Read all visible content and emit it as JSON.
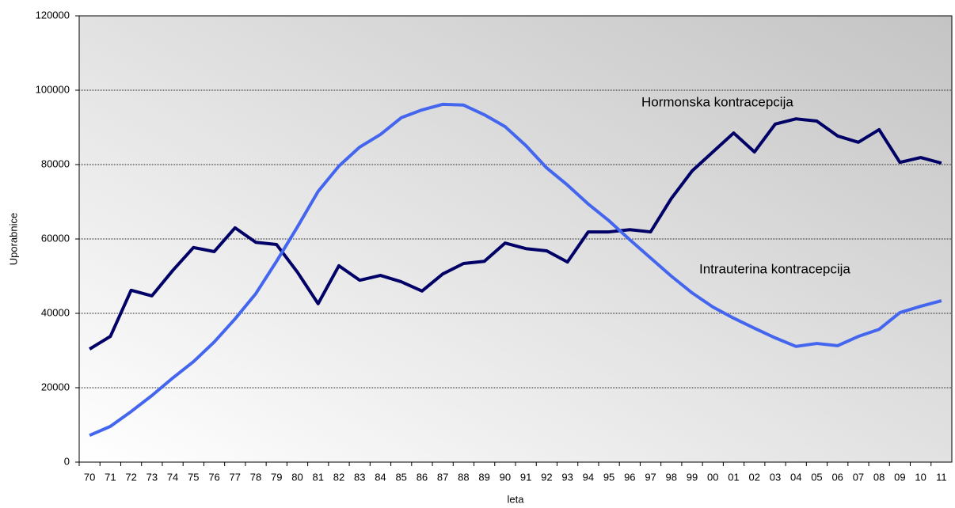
{
  "chart_data": {
    "type": "line",
    "ylabel": "Uporabnice",
    "xlabel": "leta",
    "categories": [
      "70",
      "71",
      "72",
      "73",
      "74",
      "75",
      "76",
      "77",
      "78",
      "79",
      "80",
      "81",
      "82",
      "83",
      "84",
      "85",
      "86",
      "87",
      "88",
      "89",
      "90",
      "91",
      "92",
      "93",
      "94",
      "95",
      "96",
      "97",
      "98",
      "99",
      "00",
      "01",
      "02",
      "03",
      "04",
      "05",
      "06",
      "07",
      "08",
      "09",
      "10",
      "11"
    ],
    "series": [
      {
        "name": "Hormonska kontracepcija",
        "color": "#000066",
        "values": [
          30400,
          33800,
          46200,
          44700,
          51500,
          57700,
          56600,
          63000,
          59100,
          58500,
          51100,
          42600,
          52800,
          48900,
          50200,
          48500,
          46000,
          50600,
          53400,
          54000,
          58900,
          57400,
          56800,
          53800,
          61900,
          61900,
          62500,
          61900,
          70900,
          78300,
          83400,
          88500,
          83400,
          90900,
          92300,
          91700,
          87700,
          86000,
          89400,
          80600,
          81900,
          80400
        ]
      },
      {
        "name": "Intrauterina kontracepcija",
        "color": "#4466ee",
        "values": [
          7200,
          9600,
          13600,
          17900,
          22600,
          27000,
          32300,
          38500,
          45300,
          54000,
          63200,
          72800,
          79600,
          84700,
          88100,
          92600,
          94700,
          96200,
          96000,
          93400,
          90200,
          85100,
          79100,
          74500,
          69400,
          64900,
          59800,
          54900,
          50000,
          45500,
          41700,
          38700,
          36000,
          33400,
          31100,
          31900,
          31300,
          33800,
          35700,
          40200,
          41900,
          43400
        ]
      }
    ],
    "ylim": [
      0,
      120000
    ],
    "yticks": [
      0,
      20000,
      40000,
      60000,
      80000,
      100000,
      120000
    ],
    "grid": true
  }
}
